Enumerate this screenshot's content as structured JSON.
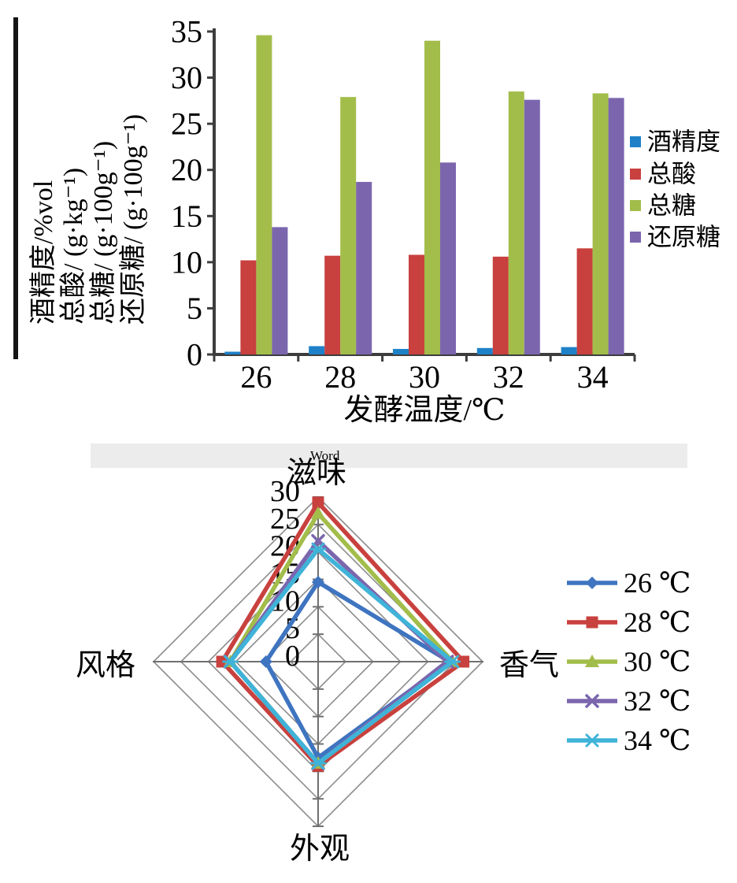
{
  "page": {
    "watermark_text": "Word",
    "background": "#ffffff",
    "scan_border_color": "#151515",
    "band_color": "#ececec"
  },
  "chart_data": [
    {
      "type": "bar",
      "title": "",
      "categories": [
        "26",
        "28",
        "30",
        "32",
        "34"
      ],
      "series": [
        {
          "name": "酒精度",
          "color": "#1e81c8",
          "values": [
            0.3,
            0.9,
            0.6,
            0.7,
            0.8
          ]
        },
        {
          "name": "总酸",
          "color": "#c8413e",
          "values": [
            10.2,
            10.7,
            10.8,
            10.6,
            11.5
          ]
        },
        {
          "name": "总糖",
          "color": "#a2bd4a",
          "values": [
            34.6,
            27.9,
            34.0,
            28.5,
            28.3
          ]
        },
        {
          "name": "还原糖",
          "color": "#7b66ae",
          "values": [
            13.8,
            18.7,
            20.8,
            27.6,
            27.8
          ]
        }
      ],
      "xlabel": "发酵温度/℃",
      "ylabel_lines": [
        "酒精度/%vol",
        "总酸/ (g·kg⁻¹)",
        "总糖/ (g·100g⁻¹)",
        "还原糖/ (g·100g⁻¹)"
      ],
      "ylim": [
        0,
        35
      ],
      "yticks": [
        0,
        5,
        10,
        15,
        20,
        25,
        30,
        35
      ],
      "grid": false,
      "legend_position": "right",
      "axis_color": "#3d3d3d"
    },
    {
      "type": "radar",
      "title": "",
      "axes": [
        "滋味",
        "香气",
        "外观",
        "风格"
      ],
      "rmax": 30,
      "rticks": [
        0,
        5,
        10,
        15,
        20,
        25,
        30
      ],
      "tick_labels": [
        "30",
        "25",
        "20",
        "15",
        "10",
        "5",
        "0"
      ],
      "series": [
        {
          "name": "26 ℃",
          "color": "#3e74c0",
          "marker": "diamond",
          "values": [
            14.5,
            24.0,
            17.5,
            9.5
          ]
        },
        {
          "name": "28 ℃",
          "color": "#c8413e",
          "marker": "square",
          "values": [
            29.0,
            26.5,
            19.0,
            17.5
          ]
        },
        {
          "name": "30 ℃",
          "color": "#a2bd4a",
          "marker": "triangle",
          "values": [
            27.0,
            24.5,
            18.5,
            16.0
          ]
        },
        {
          "name": "32 ℃",
          "color": "#7b66ae",
          "marker": "x",
          "values": [
            22.0,
            23.5,
            18.5,
            16.0
          ]
        },
        {
          "name": "34 ℃",
          "color": "#3fb3d8",
          "marker": "star",
          "values": [
            20.5,
            24.5,
            18.5,
            16.0
          ]
        }
      ],
      "grid": true,
      "grid_color": "#8c8c8c",
      "legend_position": "right"
    }
  ]
}
